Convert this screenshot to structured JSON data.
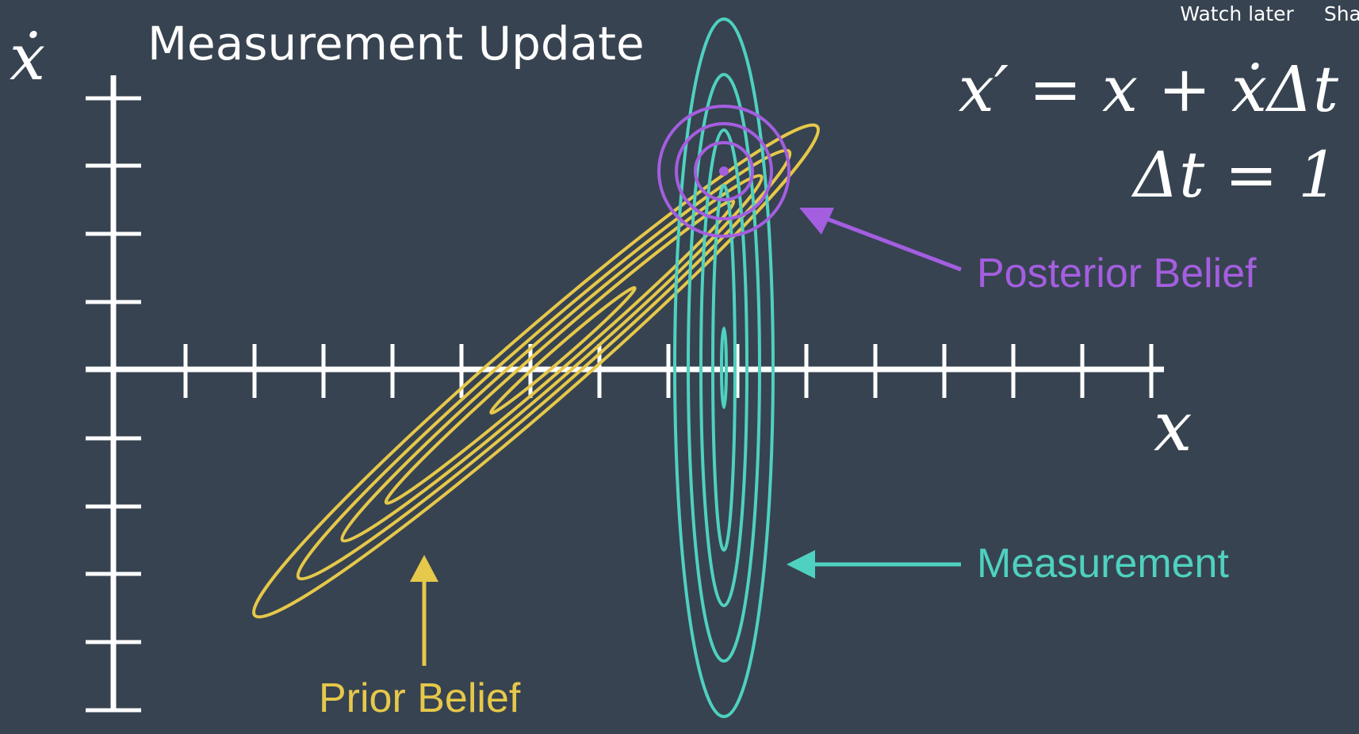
{
  "title": "Measurement Update",
  "axes": {
    "y_label": "ẋ",
    "x_label": "x"
  },
  "equations": {
    "motion": "x′ = x + ẋΔt",
    "timestep": "Δt = 1"
  },
  "annotations": {
    "posterior": "Posterior Belief",
    "measurement": "Measurement",
    "prior": "Prior Belief"
  },
  "player_overlay": {
    "watch_later": "Watch later",
    "share": "Share"
  },
  "colors": {
    "background": "#374350",
    "axes": "#ffffff",
    "prior": "#e6c84a",
    "measurement": "#4fd1c0",
    "posterior": "#a45ee0"
  }
}
